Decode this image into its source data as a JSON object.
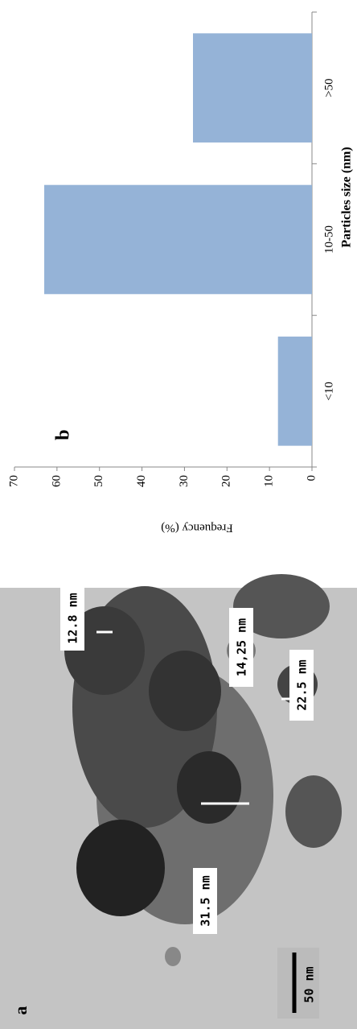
{
  "chart_data": {
    "type": "bar",
    "panel_label": "b",
    "categories": [
      "<10",
      "10-50",
      ">50"
    ],
    "values": [
      8,
      63,
      28
    ],
    "color": "#95b3d7",
    "ylim": [
      0,
      70
    ],
    "yticks": [
      0,
      10,
      20,
      30,
      40,
      50,
      60,
      70
    ],
    "xlabel": "Particles size (nm)",
    "ylabel": "Frequency (%)"
  },
  "image_panel": {
    "panel_label": "a",
    "scale_bar": "50 nm",
    "measurements": [
      "12.8 nm",
      "14,25 nm",
      "22.5 nm",
      "31.5 nm"
    ]
  }
}
